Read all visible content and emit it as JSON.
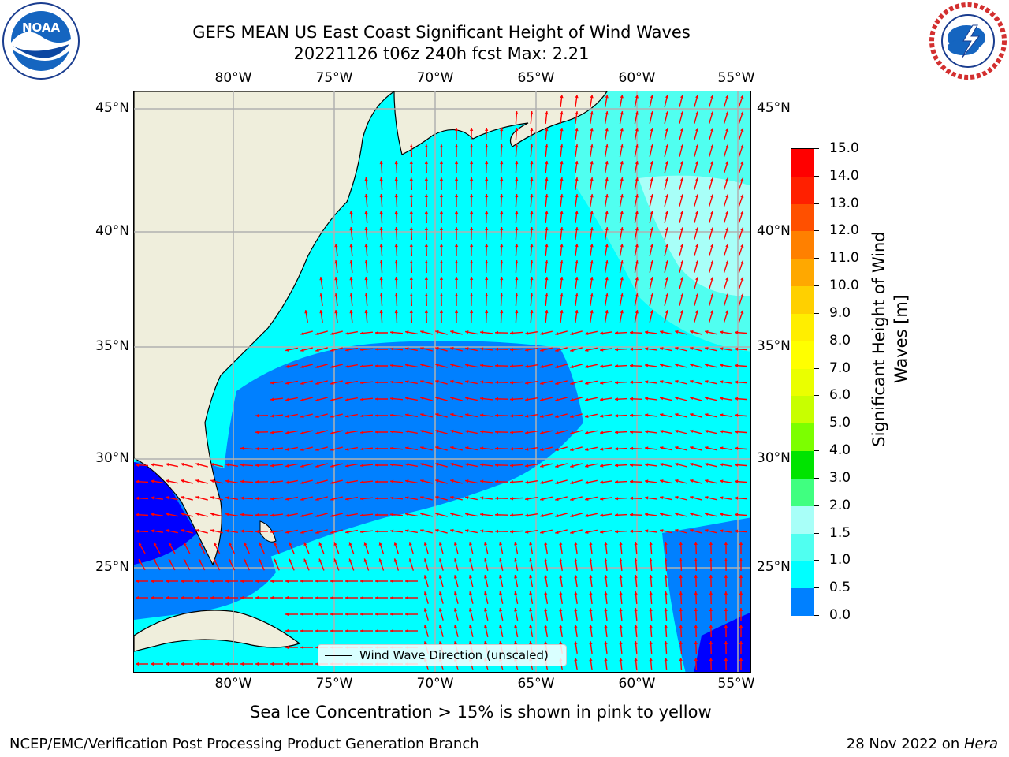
{
  "header": {
    "title_line1": "GEFS MEAN US East Coast Significant Height of Wind Waves",
    "title_line2": "20221126 t06z 240h fcst   Max: 2.21"
  },
  "logos": {
    "left": "noaa-logo",
    "right": "national-weather-service-logo"
  },
  "map": {
    "lon_ticks": [
      "80°W",
      "75°W",
      "70°W",
      "65°W",
      "60°W",
      "55°W"
    ],
    "lat_ticks": [
      "45°N",
      "40°N",
      "35°N",
      "30°N",
      "25°N"
    ],
    "legend_label": "Wind Wave Direction (unscaled)",
    "land_color": "#efeedc",
    "arrow_color": "#ff0000",
    "grid_color": "#b0b0b0"
  },
  "colorbar": {
    "label": "Significant Height of Wind Waves [m]",
    "label_line1": "Significant Height of Wind",
    "label_line2": "Waves [m]",
    "ticks": [
      "15.0",
      "14.0",
      "13.0",
      "12.0",
      "11.0",
      "10.0",
      "9.0",
      "8.0",
      "7.0",
      "6.0",
      "5.0",
      "4.0",
      "3.0",
      "2.0",
      "1.5",
      "1.0",
      "0.5",
      "0.0"
    ],
    "colors": [
      "#ff0000",
      "#ff2000",
      "#ff5000",
      "#ff8000",
      "#ffa800",
      "#ffd000",
      "#ffee00",
      "#ffff00",
      "#eaff00",
      "#c8ff00",
      "#7cff00",
      "#00e400",
      "#40ff80",
      "#a8fff8",
      "#50fff0",
      "#00ffff",
      "#0080ff",
      "#0000ff"
    ]
  },
  "footer": {
    "sea_ice_note": "Sea Ice Concentration > 15% is shown in pink to yellow",
    "credit": "NCEP/EMC/Verification Post Processing Product Generation Branch",
    "date_prefix": "28 Nov 2022 on ",
    "machine": "Hera"
  }
}
